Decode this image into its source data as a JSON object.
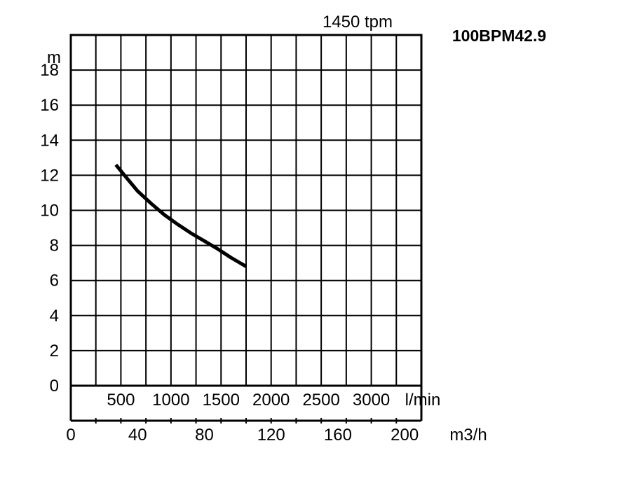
{
  "chart_data": {
    "type": "line",
    "title": "100BPM42.9",
    "speed_label": "1450 tpm",
    "y_unit": "m",
    "x_unit": "m3/h",
    "x2_unit": "l/min",
    "ylim": [
      0,
      20
    ],
    "xlim": [
      0,
      210
    ],
    "grid": true,
    "y_ticks": [
      "0",
      "2",
      "4",
      "6",
      "8",
      "10",
      "12",
      "14",
      "16",
      "18"
    ],
    "x_ticks": [
      "0",
      "40",
      "80",
      "120",
      "160",
      "200"
    ],
    "x2_ticks": [
      "500",
      "1000",
      "1500",
      "2000",
      "2500",
      "3000"
    ],
    "series": [
      {
        "x": [
          27,
          33,
          40,
          48,
          56,
          64,
          72,
          80,
          88,
          96,
          105
        ],
        "y": [
          12.6,
          11.9,
          11.1,
          10.4,
          9.75,
          9.2,
          8.7,
          8.25,
          7.8,
          7.3,
          6.8
        ]
      }
    ]
  }
}
